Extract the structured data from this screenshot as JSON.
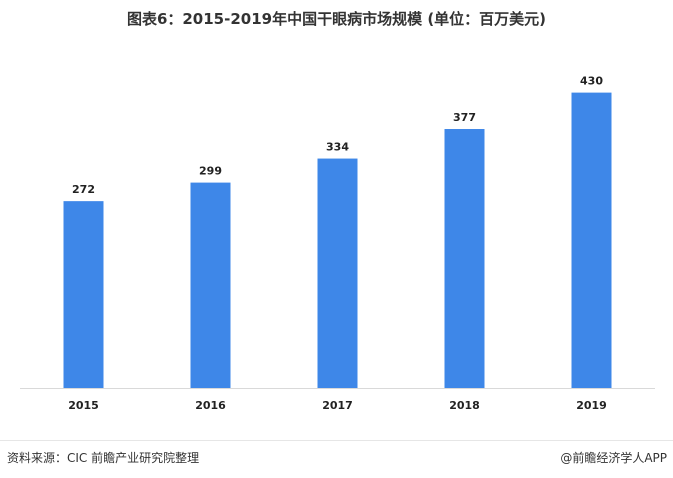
{
  "chart_data": {
    "type": "bar",
    "title": "图表6：2015-2019年中国干眼病市场规模 (单位：百万美元)",
    "categories": [
      "2015",
      "2016",
      "2017",
      "2018",
      "2019"
    ],
    "values": [
      272,
      299,
      334,
      377,
      430
    ],
    "data_labels": [
      "272",
      "299",
      "334",
      "377",
      "430"
    ],
    "xlabel": "",
    "ylabel": "",
    "ylim": [
      0,
      460
    ],
    "grid": false,
    "legend": "none",
    "bar_color": "#3E87E8",
    "axis_color": "#d9d9d9"
  },
  "footer": {
    "source": "资料来源：CIC 前瞻产业研究院整理",
    "credit": "@前瞻经济学人APP"
  },
  "watermark": {
    "text": "前瞻产业研究院"
  }
}
